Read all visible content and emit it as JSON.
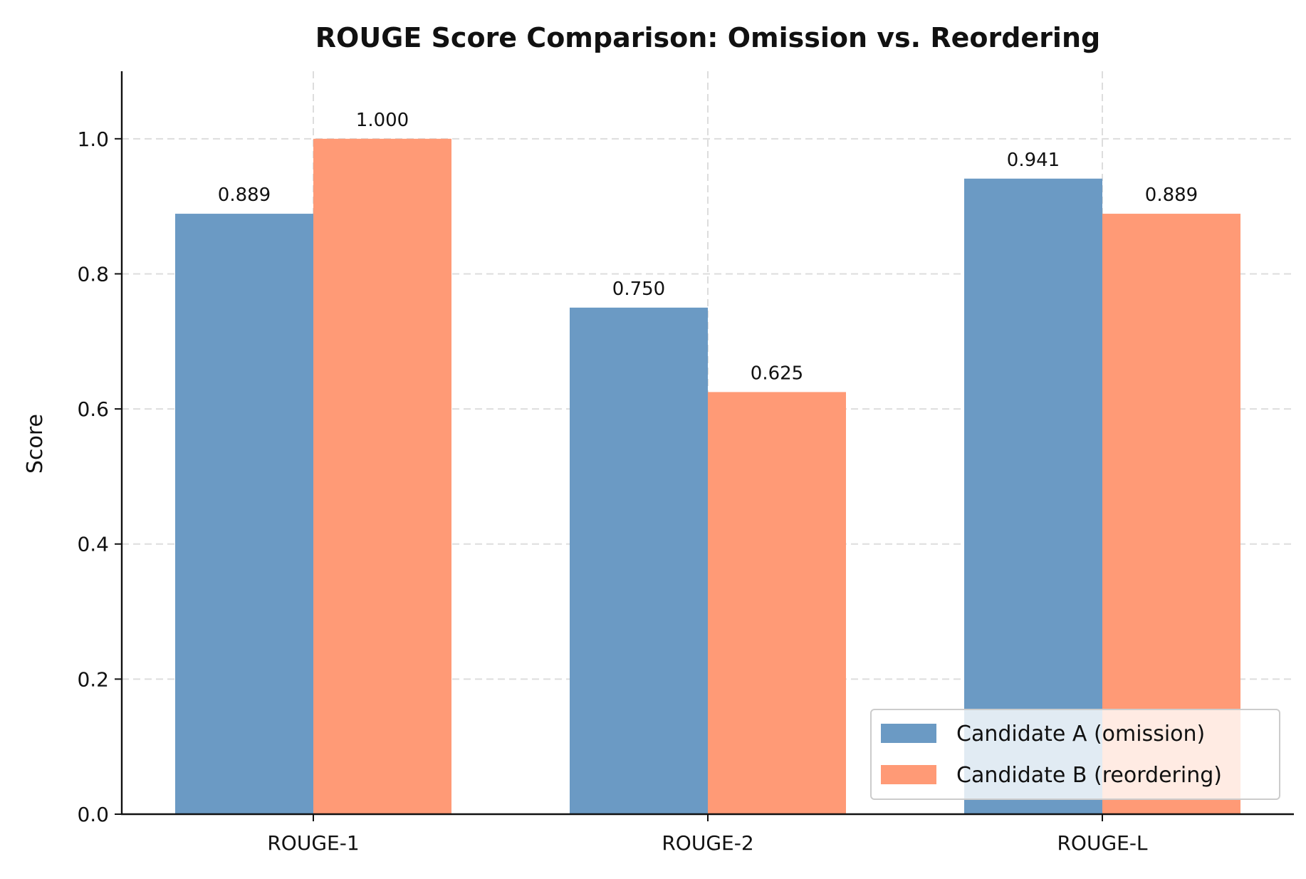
{
  "chart_data": {
    "type": "bar",
    "title": "ROUGE Score Comparison: Omission vs. Reordering",
    "xlabel": "",
    "ylabel": "Score",
    "categories": [
      "ROUGE-1",
      "ROUGE-2",
      "ROUGE-L"
    ],
    "ylim": [
      0,
      1.1
    ],
    "yticks": [
      0.0,
      0.2,
      0.4,
      0.6,
      0.8,
      1.0
    ],
    "ytick_labels": [
      "0.0",
      "0.2",
      "0.4",
      "0.6",
      "0.8",
      "1.0"
    ],
    "grid": true,
    "legend_position": "lower-right",
    "series": [
      {
        "name": "Candidate A (omission)",
        "color": "#6b9ac4",
        "values": [
          0.889,
          0.75,
          0.941
        ],
        "labels": [
          "0.889",
          "0.750",
          "0.941"
        ]
      },
      {
        "name": "Candidate B (reordering)",
        "color": "#ff9a76",
        "values": [
          1.0,
          0.625,
          0.889
        ],
        "labels": [
          "1.000",
          "0.625",
          "0.889"
        ]
      }
    ]
  }
}
